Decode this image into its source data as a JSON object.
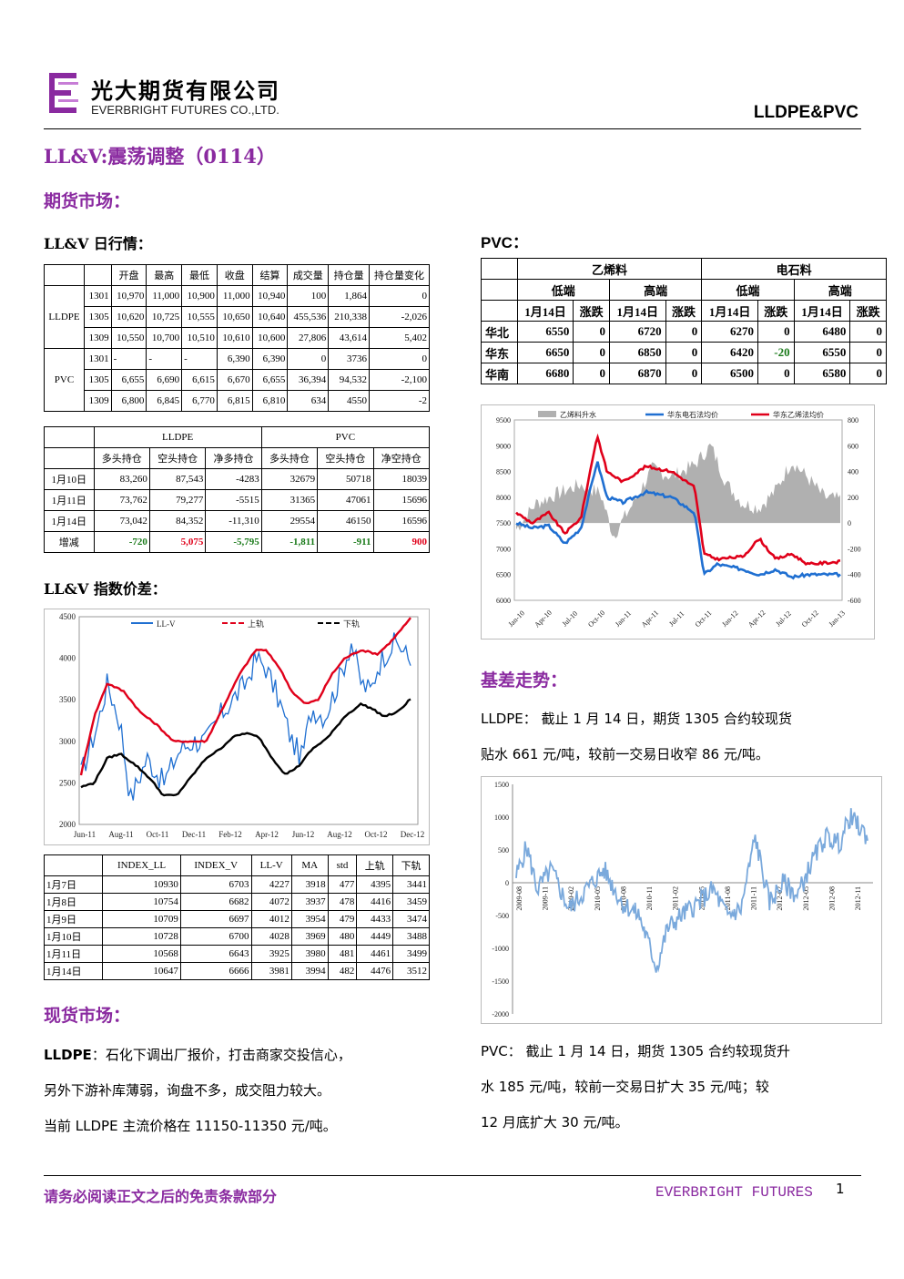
{
  "header": {
    "company_cn": "光大期货有限公司",
    "company_en": "EVERBRIGHT FUTURES CO.,LTD.",
    "tag": "LLDPE&PVC"
  },
  "title": "LL&V:震荡调整（0114）",
  "section_futures": "期货市场：",
  "daily_title": "LL&V 日行情：",
  "daily_table": {
    "headers": [
      "",
      "",
      "开盘",
      "最高",
      "最低",
      "收盘",
      "结算",
      "成交量",
      "持仓量",
      "持仓量变化"
    ],
    "groups": [
      {
        "name": "LLDPE",
        "rows": [
          [
            "1301",
            "10,970",
            "11,000",
            "10,900",
            "11,000",
            "10,940",
            "100",
            "1,864",
            "0"
          ],
          [
            "1305",
            "10,620",
            "10,725",
            "10,555",
            "10,650",
            "10,640",
            "455,536",
            "210,338",
            "-2,026"
          ],
          [
            "1309",
            "10,550",
            "10,700",
            "10,510",
            "10,610",
            "10,600",
            "27,806",
            "43,614",
            "5,402"
          ]
        ]
      },
      {
        "name": "PVC",
        "rows": [
          [
            "1301",
            "-",
            "-",
            "-",
            "6,390",
            "6,390",
            "0",
            "3736",
            "0"
          ],
          [
            "1305",
            "6,655",
            "6,690",
            "6,615",
            "6,670",
            "6,655",
            "36,394",
            "94,532",
            "-2,100"
          ],
          [
            "1309",
            "6,800",
            "6,845",
            "6,770",
            "6,815",
            "6,810",
            "634",
            "4550",
            "-2"
          ]
        ]
      }
    ]
  },
  "position_table": {
    "group_headers": [
      "LLDPE",
      "PVC"
    ],
    "headers": [
      "多头持仓",
      "空头持仓",
      "净多持仓",
      "多头持仓",
      "空头持仓",
      "净空持仓"
    ],
    "rows": [
      [
        "1月10日",
        "83,260",
        "87,543",
        "-4283",
        "32679",
        "50718",
        "18039"
      ],
      [
        "1月11日",
        "73,762",
        "79,277",
        "-5515",
        "31365",
        "47061",
        "15696"
      ],
      [
        "1月14日",
        "73,042",
        "84,352",
        "-11,310",
        "29554",
        "46150",
        "16596"
      ]
    ],
    "change_row": [
      "增减",
      "-720",
      "5,075",
      "-5,795",
      "-1,811",
      "-911",
      "900"
    ]
  },
  "index_title": "LL&V 指数价差：",
  "index_table": {
    "headers": [
      "",
      "INDEX_LL",
      "INDEX_V",
      "LL-V",
      "MA",
      "std",
      "上轨",
      "下轨"
    ],
    "rows": [
      [
        "1月7日",
        "10930",
        "6703",
        "4227",
        "3918",
        "477",
        "4395",
        "3441"
      ],
      [
        "1月8日",
        "10754",
        "6682",
        "4072",
        "3937",
        "478",
        "4416",
        "3459"
      ],
      [
        "1月9日",
        "10709",
        "6697",
        "4012",
        "3954",
        "479",
        "4433",
        "3474"
      ],
      [
        "1月10日",
        "10728",
        "6700",
        "4028",
        "3969",
        "480",
        "4449",
        "3488"
      ],
      [
        "1月11日",
        "10568",
        "6643",
        "3925",
        "3980",
        "481",
        "4461",
        "3499"
      ],
      [
        "1月14日",
        "10647",
        "6666",
        "3981",
        "3994",
        "482",
        "4476",
        "3512"
      ]
    ]
  },
  "section_spot": "现货市场：",
  "spot_label": "LLDPE",
  "spot_lines": [
    "：石化下调出厂报价，打击商家交投信心，",
    "另外下游补库薄弱，询盘不多，成交阻力较大。",
    "当前 LLDPE 主流价格在 11150-11350 元/吨。"
  ],
  "pvc_title": "PVC：",
  "pvc_table": {
    "group_headers": [
      "乙烯料",
      "电石料"
    ],
    "sub_headers": [
      "低端",
      "高端",
      "低端",
      "高端"
    ],
    "col_headers": [
      "1月14日",
      "涨跌",
      "1月14日",
      "涨跌",
      "1月14日",
      "涨跌",
      "1月14日",
      "涨跌"
    ],
    "rows": [
      [
        "华北",
        "6550",
        "0",
        "6720",
        "0",
        "6270",
        "0",
        "6480",
        "0"
      ],
      [
        "华东",
        "6650",
        "0",
        "6850",
        "0",
        "6420",
        "-20",
        "6550",
        "0"
      ],
      [
        "华南",
        "6680",
        "0",
        "6870",
        "0",
        "6500",
        "0",
        "6580",
        "0"
      ]
    ],
    "green_color": "#1a7a1a"
  },
  "basis_title": "基差走势：",
  "basis_lldpe_lines": [
    "LLDPE：  截止 1 月 14 日，期货 1305 合约较现货",
    "贴水 661 元/吨，较前一交易日收窄 86 元/吨。"
  ],
  "basis_pvc_lines": [
    "PVC：  截止 1 月 14 日，期货 1305 合约较现货升",
    "水 185 元/吨，较前一交易日扩大 35 元/吨；较",
    "12 月底扩大 30 元/吨。"
  ],
  "footer": {
    "disclaimer": "请务必阅读正文之后的免责条款部分",
    "brand": "EVERBRIGHT FUTURES",
    "page": "1"
  },
  "chart_data": [
    {
      "type": "line",
      "xlabel": "",
      "ylabel": "",
      "x_ticks": [
        "Jun-11",
        "Aug-11",
        "Oct-11",
        "Dec-11",
        "Feb-12",
        "Apr-12",
        "Jun-12",
        "Aug-12",
        "Oct-12",
        "Dec-12"
      ],
      "y_ticks": [
        "2000",
        "2500",
        "3000",
        "3500",
        "4000",
        "4500"
      ],
      "ylim": [
        2000,
        4500
      ],
      "legend": [
        "LL-V",
        "上轨",
        "下轨"
      ],
      "series_anchors": {
        "LL-V": [
          [
            0,
            2600
          ],
          [
            0.05,
            3200
          ],
          [
            0.08,
            3700
          ],
          [
            0.12,
            3200
          ],
          [
            0.15,
            2300
          ],
          [
            0.2,
            2800
          ],
          [
            0.25,
            2500
          ],
          [
            0.3,
            2900
          ],
          [
            0.34,
            3000
          ],
          [
            0.38,
            3000
          ],
          [
            0.42,
            3300
          ],
          [
            0.46,
            3500
          ],
          [
            0.5,
            3700
          ],
          [
            0.53,
            4000
          ],
          [
            0.56,
            3900
          ],
          [
            0.6,
            3500
          ],
          [
            0.64,
            3000
          ],
          [
            0.67,
            2800
          ],
          [
            0.7,
            3400
          ],
          [
            0.74,
            3300
          ],
          [
            0.78,
            3700
          ],
          [
            0.82,
            4200
          ],
          [
            0.85,
            3700
          ],
          [
            0.88,
            3600
          ],
          [
            0.9,
            3900
          ],
          [
            0.93,
            4100
          ],
          [
            0.96,
            4200
          ],
          [
            1.0,
            3950
          ]
        ],
        "上轨": [
          [
            0,
            2600
          ],
          [
            0.04,
            3300
          ],
          [
            0.08,
            3700
          ],
          [
            0.13,
            3600
          ],
          [
            0.18,
            3350
          ],
          [
            0.23,
            3200
          ],
          [
            0.28,
            3000
          ],
          [
            0.33,
            3000
          ],
          [
            0.38,
            3000
          ],
          [
            0.43,
            3400
          ],
          [
            0.48,
            3800
          ],
          [
            0.53,
            4100
          ],
          [
            0.56,
            4100
          ],
          [
            0.6,
            3900
          ],
          [
            0.64,
            3600
          ],
          [
            0.68,
            3450
          ],
          [
            0.72,
            3500
          ],
          [
            0.76,
            3800
          ],
          [
            0.8,
            4000
          ],
          [
            0.85,
            4100
          ],
          [
            0.9,
            4050
          ],
          [
            0.94,
            4200
          ],
          [
            1.0,
            4480
          ]
        ],
        "下轨": [
          [
            0,
            2450
          ],
          [
            0.04,
            2500
          ],
          [
            0.08,
            2800
          ],
          [
            0.12,
            2850
          ],
          [
            0.17,
            2700
          ],
          [
            0.21,
            2550
          ],
          [
            0.25,
            2350
          ],
          [
            0.29,
            2350
          ],
          [
            0.34,
            2600
          ],
          [
            0.38,
            2800
          ],
          [
            0.42,
            2900
          ],
          [
            0.46,
            3050
          ],
          [
            0.5,
            3100
          ],
          [
            0.54,
            3050
          ],
          [
            0.58,
            2800
          ],
          [
            0.62,
            2600
          ],
          [
            0.66,
            2700
          ],
          [
            0.7,
            2900
          ],
          [
            0.75,
            3050
          ],
          [
            0.8,
            3300
          ],
          [
            0.85,
            3450
          ],
          [
            0.88,
            3400
          ],
          [
            0.92,
            3300
          ],
          [
            0.96,
            3350
          ],
          [
            1.0,
            3510
          ]
        ]
      },
      "colors": {
        "LL-V": "#1f6fd1",
        "上轨": "#e0001a",
        "下轨": "#000000"
      }
    },
    {
      "type": "line",
      "x_ticks": [
        "Jan-10",
        "Apr-10",
        "Jul-10",
        "Oct-10",
        "Jan-11",
        "Apr-11",
        "Jul-11",
        "Oct-11",
        "Jan-12",
        "Apr-12",
        "Jul-12",
        "Oct-12",
        "Jan-13"
      ],
      "y_ticks_left": [
        "6000",
        "6500",
        "7000",
        "7500",
        "8000",
        "8500",
        "9000",
        "9500"
      ],
      "y_ticks_right": [
        "-600",
        "-400",
        "-200",
        "0",
        "200",
        "400",
        "600",
        "800"
      ],
      "ylim_left": [
        6000,
        9500
      ],
      "ylim_right": [
        -600,
        800
      ],
      "legend": [
        "乙烯料升水",
        "华东电石法均价",
        "华东乙烯法均价"
      ],
      "colors": {
        "乙烯料升水": "#b0b0b0",
        "华东电石法均价": "#1f6fd1",
        "华东乙烯法均价": "#e0001a"
      }
    },
    {
      "type": "line",
      "x_ticks": [
        "2009-08",
        "2009-11",
        "2010-02",
        "2010-05",
        "2010-08",
        "2010-11",
        "2011-02",
        "2011-05",
        "2011-08",
        "2011-11",
        "2012-02",
        "2012-05",
        "2012-08",
        "2012-11"
      ],
      "y_ticks": [
        "-2000",
        "-1500",
        "-1000",
        "-500",
        "0",
        "500",
        "1000",
        "1500"
      ],
      "ylim": [
        -2000,
        1500
      ],
      "color": "#7aa9dc"
    }
  ]
}
